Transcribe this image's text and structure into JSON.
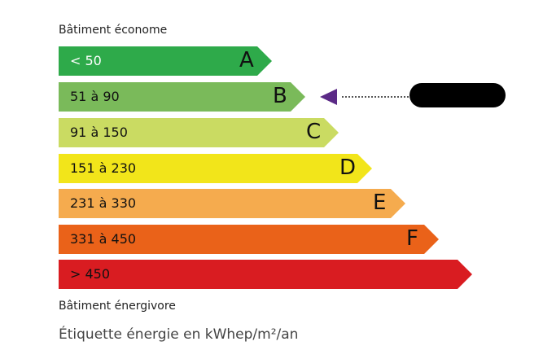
{
  "top_label": "Bâtiment économe",
  "bottom_label": "Bâtiment énergivore",
  "footer": "Étiquette énergie en kWhep/m²/an",
  "classes": [
    {
      "letter": "A",
      "range": "< 50",
      "color": "#2eaa4a"
    },
    {
      "letter": "B",
      "range": "51 à 90",
      "color": "#7aba5a"
    },
    {
      "letter": "C",
      "range": "91 à 150",
      "color": "#cadb62"
    },
    {
      "letter": "D",
      "range": "151 à 230",
      "color": "#f2e51a"
    },
    {
      "letter": "E",
      "range": "231 à 330",
      "color": "#f5ab4e"
    },
    {
      "letter": "F",
      "range": "331 à 450",
      "color": "#ea6219"
    },
    {
      "letter": "",
      "range": "> 450",
      "color": "#d91c21"
    }
  ],
  "indicator": {
    "class": "B",
    "color": "#5b2a86",
    "value_redacted": true
  }
}
